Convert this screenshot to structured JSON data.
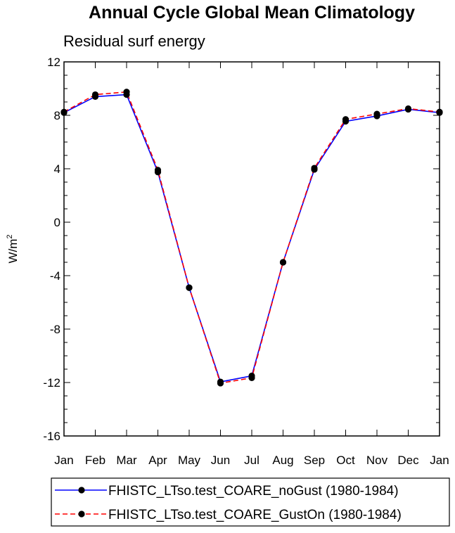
{
  "chart_data": {
    "type": "line",
    "title": "Annual Cycle Global Mean Climatology",
    "subtitle": "Residual surf energy",
    "ylabel": "W/m",
    "ylabel_sup": "2",
    "ylim": [
      -16,
      12
    ],
    "yticks": [
      "12",
      "8",
      "4",
      "0",
      "-4",
      "-8",
      "-12",
      "-16"
    ],
    "ytick_values": [
      12,
      8,
      4,
      0,
      -4,
      -8,
      -12,
      -16
    ],
    "categories": [
      "Jan",
      "Feb",
      "Mar",
      "Apr",
      "May",
      "Jun",
      "Jul",
      "Aug",
      "Sep",
      "Oct",
      "Nov",
      "Dec",
      "Jan"
    ],
    "series": [
      {
        "name": "FHISTC_LTso.test_COARE_noGust (1980-1984)",
        "color": "#0000ff",
        "dash": "solid",
        "values": [
          8.2,
          9.4,
          9.55,
          3.75,
          -4.9,
          -11.95,
          -11.5,
          -3.0,
          3.95,
          7.55,
          7.95,
          8.45,
          8.2
        ]
      },
      {
        "name": "FHISTC_LTso.test_COARE_GustOn (1980-1984)",
        "color": "#ff0000",
        "dash": "dashed",
        "values": [
          8.25,
          9.55,
          9.75,
          3.9,
          -4.9,
          -12.05,
          -11.65,
          -3.0,
          4.05,
          7.7,
          8.1,
          8.5,
          8.25
        ]
      }
    ],
    "legend_position": "bottom",
    "grid": false
  }
}
